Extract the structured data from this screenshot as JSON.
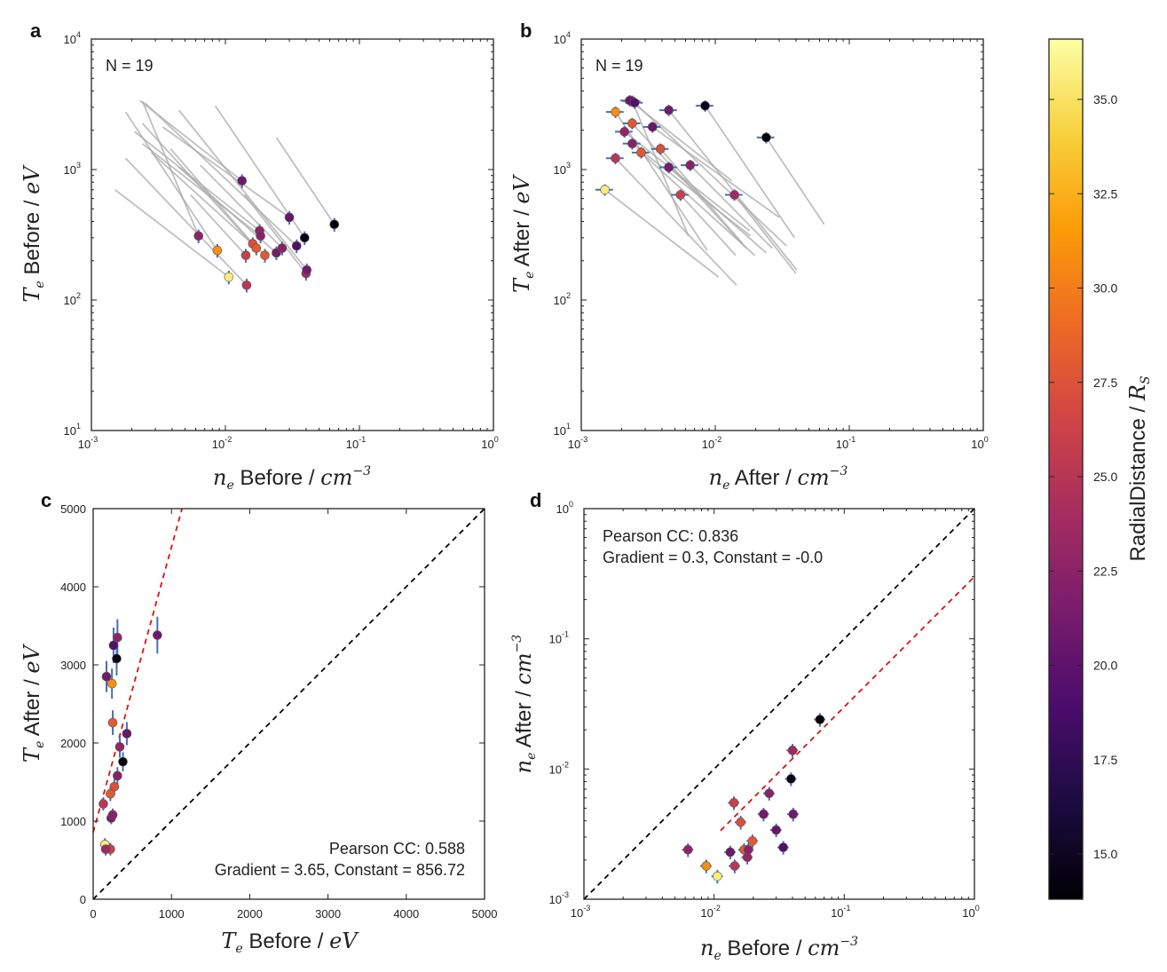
{
  "chart_data": [
    {
      "panel": "a",
      "type": "scatter",
      "annotation": "N = 19",
      "xlabel": {
        "sym": "n",
        "sub": "e",
        "word": " Before / ",
        "unit": "cm",
        "exp": "−3"
      },
      "ylabel": {
        "sym": "T",
        "sub": "e",
        "word": " Before / ",
        "unit": "eV"
      },
      "xscale": "log",
      "yscale": "log",
      "xlim": [
        0.001,
        1
      ],
      "ylim": [
        10,
        10000
      ],
      "xticks": [
        "10",
        "10",
        "10",
        "10"
      ],
      "xtick_exps": [
        "-3",
        "-2",
        "-1",
        "0"
      ],
      "yticks": [
        "10",
        "10",
        "10",
        "10"
      ],
      "ytick_exps": [
        "1",
        "2",
        "3",
        "4"
      ]
    },
    {
      "panel": "b",
      "type": "scatter",
      "annotation": "N = 19",
      "xlabel": {
        "sym": "n",
        "sub": "e",
        "word": " After / ",
        "unit": "cm",
        "exp": "−3"
      },
      "ylabel": {
        "sym": "T",
        "sub": "e",
        "word": " After / ",
        "unit": "eV"
      },
      "xscale": "log",
      "yscale": "log",
      "xlim": [
        0.001,
        1
      ],
      "ylim": [
        10,
        10000
      ],
      "xticks": [
        "10",
        "10",
        "10",
        "10"
      ],
      "xtick_exps": [
        "-3",
        "-2",
        "-1",
        "0"
      ],
      "yticks": [
        "10",
        "10",
        "10",
        "10"
      ],
      "ytick_exps": [
        "1",
        "2",
        "3",
        "4"
      ]
    },
    {
      "panel": "c",
      "type": "scatter",
      "annotation": [
        "Pearson CC: 0.588",
        "Gradient = 3.65, Constant = 856.72"
      ],
      "xlabel": {
        "sym": "T",
        "sub": "e",
        "word": " Before / ",
        "unit": "eV"
      },
      "ylabel": {
        "sym": "T",
        "sub": "e",
        "word": " After / ",
        "unit": "eV"
      },
      "xscale": "linear",
      "yscale": "linear",
      "xlim": [
        0,
        5000
      ],
      "ylim": [
        0,
        5000
      ],
      "xticks": [
        "0",
        "1000",
        "2000",
        "3000",
        "4000",
        "5000"
      ],
      "yticks": [
        "0",
        "1000",
        "2000",
        "3000",
        "4000",
        "5000"
      ],
      "fit": {
        "gradient": 3.65,
        "constant": 856.72
      }
    },
    {
      "panel": "d",
      "type": "scatter",
      "annotation": [
        "Pearson CC: 0.836",
        "Gradient = 0.3, Constant = -0.0"
      ],
      "xlabel": {
        "sym": "n",
        "sub": "e",
        "word": " Before / ",
        "unit": "cm",
        "exp": "−3"
      },
      "ylabel": {
        "sym": "n",
        "sub": "e",
        "word": " After / ",
        "unit": "cm",
        "exp": "−3"
      },
      "xscale": "log",
      "yscale": "log",
      "xlim": [
        0.001,
        1
      ],
      "ylim": [
        0.001,
        1
      ],
      "xticks": [
        "10",
        "10",
        "10",
        "10"
      ],
      "xtick_exps": [
        "-3",
        "-2",
        "-1",
        "0"
      ],
      "yticks": [
        "10",
        "10",
        "10",
        "10"
      ],
      "ytick_exps": [
        "-3",
        "-2",
        "-1",
        "0"
      ],
      "fit": {
        "gradient": 0.3,
        "constant": -0.0
      }
    }
  ],
  "events": [
    {
      "ne_before": 0.0063,
      "te_before": 310,
      "ne_after": 0.0024,
      "te_after": 3350,
      "r": 22.6
    },
    {
      "ne_before": 0.0087,
      "te_before": 240,
      "ne_after": 0.0018,
      "te_after": 2760,
      "r": 30.8
    },
    {
      "ne_before": 0.0106,
      "te_before": 150,
      "ne_after": 0.0015,
      "te_after": 700,
      "r": 35.6
    },
    {
      "ne_before": 0.0133,
      "te_before": 820,
      "ne_after": 0.0023,
      "te_after": 3380,
      "r": 20.8
    },
    {
      "ne_before": 0.0142,
      "te_before": 220,
      "ne_after": 0.0055,
      "te_after": 640,
      "r": 26.0
    },
    {
      "ne_before": 0.0144,
      "te_before": 130,
      "ne_after": 0.0018,
      "te_after": 1220,
      "r": 25.2
    },
    {
      "ne_before": 0.016,
      "te_before": 270,
      "ne_after": 0.0039,
      "te_after": 1440,
      "r": 27.3
    },
    {
      "ne_before": 0.017,
      "te_before": 250,
      "ne_after": 0.0024,
      "te_after": 2260,
      "r": 28.0
    },
    {
      "ne_before": 0.018,
      "te_before": 340,
      "ne_after": 0.0021,
      "te_after": 1950,
      "r": 22.9
    },
    {
      "ne_before": 0.0183,
      "te_before": 310,
      "ne_after": 0.0024,
      "te_after": 1580,
      "r": 22.3
    },
    {
      "ne_before": 0.0197,
      "te_before": 220,
      "ne_after": 0.0028,
      "te_after": 1350,
      "r": 27.9
    },
    {
      "ne_before": 0.024,
      "te_before": 230,
      "ne_after": 0.0045,
      "te_after": 1040,
      "r": 21.3
    },
    {
      "ne_before": 0.0265,
      "te_before": 250,
      "ne_after": 0.0065,
      "te_after": 1080,
      "r": 22.4
    },
    {
      "ne_before": 0.03,
      "te_before": 430,
      "ne_after": 0.0034,
      "te_after": 2120,
      "r": 20.5
    },
    {
      "ne_before": 0.034,
      "te_before": 260,
      "ne_after": 0.0025,
      "te_after": 3250,
      "r": 19.3
    },
    {
      "ne_before": 0.039,
      "te_before": 300,
      "ne_after": 0.0084,
      "te_after": 3080,
      "r": 14.6
    },
    {
      "ne_before": 0.04,
      "te_before": 160,
      "ne_after": 0.0139,
      "te_after": 640,
      "r": 23.6
    },
    {
      "ne_before": 0.0405,
      "te_before": 170,
      "ne_after": 0.0045,
      "te_after": 2850,
      "r": 21.2
    },
    {
      "ne_before": 0.065,
      "te_before": 380,
      "ne_after": 0.024,
      "te_after": 1760,
      "r": 14.0
    }
  ],
  "colorbar": {
    "title_word": "RadialDistance / ",
    "title_sym": "R",
    "title_sub": "S",
    "min": 13.8,
    "max": 36.6,
    "ticks": [
      "15.0",
      "17.5",
      "20.0",
      "22.5",
      "25.0",
      "27.5",
      "30.0",
      "32.5",
      "35.0"
    ],
    "colormap": "inferno",
    "stops": [
      "#000004",
      "#1b0c41",
      "#4a0c6b",
      "#781c6d",
      "#a52c60",
      "#cf4446",
      "#ed6925",
      "#fb9b06",
      "#f7d13d",
      "#fcffa4"
    ]
  }
}
